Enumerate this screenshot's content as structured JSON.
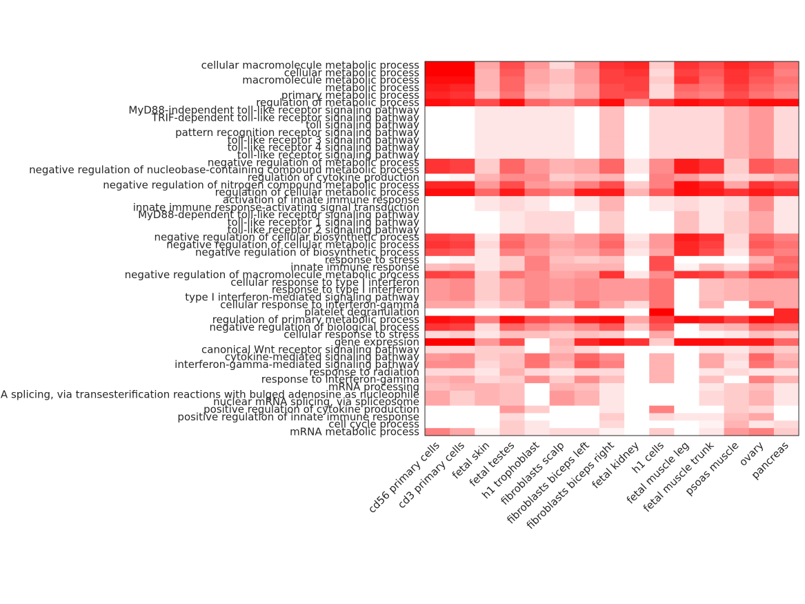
{
  "chart_data": {
    "type": "heatmap",
    "title": "",
    "xlabel": "",
    "ylabel": "",
    "color_low": "#ffffff",
    "color_high": "#ff0000",
    "value_range": [
      0,
      1
    ],
    "columns": [
      "cd56 primary cells",
      "cd3 primary cells",
      "fetal skin",
      "fetal testes",
      "h1 trophoblast",
      "fibroblasts scalp",
      "fibroblasts biceps left",
      "fibroblasts biceps right",
      "fetal kidney",
      "h1 cells",
      "fetal muscle leg",
      "fetal muscle trunk",
      "psoas muscle",
      "ovary",
      "pancreas"
    ],
    "rows": [
      "cellular macromolecule metabolic process",
      "cellular metabolic process",
      "macromolecule metabolic process",
      "metabolic process",
      "primary metabolic process",
      "regulation of metabolic process",
      "MyD88-independent toll-like receptor signaling pathway",
      "TRIF-dependent toll-like receptor signaling pathway",
      "toll signaling pathway",
      "pattern recognition receptor signaling pathway",
      "toll-like receptor 3 signaling pathway",
      "toll-like receptor 4 signaling pathway",
      "toll-like receptor signaling pathway",
      "negative regulation of metabolic process",
      "negative regulation of nucleobase-containing compound metabolic process",
      "regulation of cytokine production",
      "negative regulation of nitrogen compound metabolic process",
      "regulation of cellular metabolic process",
      "activation of innate immune response",
      "innate immune response-activating signal transduction",
      "MyD88-dependent toll-like receptor signaling pathway",
      "toll-like receptor 1 signaling pathway",
      "toll-like receptor 2 signaling pathway",
      "negative regulation of cellular biosynthetic process",
      "negative regulation of cellular metabolic process",
      "negative regulation of biosynthetic process",
      "response to stress",
      "innate immune response",
      "negative regulation of macromolecule metabolic process",
      "cellular response to type I interferon",
      "response to type I interferon",
      "type I interferon-mediated signaling pathway",
      "cellular response to interferon-gamma",
      "platelet degranulation",
      "regulation of primary metabolic process",
      "negative regulation of biological process",
      "cellular response to stress",
      "gene expression",
      "canonical Wnt receptor signaling pathway",
      "cytokine-mediated signaling pathway",
      "interferon-gamma-mediated signaling pathway",
      "response to radiation",
      "response to interferon-gamma",
      "mRNA processing",
      "mRNA splicing, via transesterification reactions with bulged adenosine as nucleophile",
      "nuclear mRNA splicing, via spliceosome",
      "positive regulation of cytokine production",
      "positive regulation of innate immune response",
      "cell cycle process",
      "mRNA metabolic process"
    ],
    "values": [
      [
        1.0,
        1.0,
        0.35,
        0.7,
        0.4,
        0.15,
        0.45,
        0.8,
        0.85,
        0.2,
        0.8,
        0.7,
        0.85,
        0.75,
        0.55
      ],
      [
        1.0,
        1.0,
        0.3,
        0.65,
        0.35,
        0.25,
        0.4,
        0.75,
        0.8,
        0.15,
        0.75,
        0.65,
        0.8,
        0.7,
        0.5
      ],
      [
        0.95,
        0.95,
        0.3,
        0.6,
        0.35,
        0.25,
        0.4,
        0.75,
        0.75,
        0.2,
        0.8,
        0.6,
        0.8,
        0.65,
        0.55
      ],
      [
        0.9,
        0.85,
        0.3,
        0.6,
        0.3,
        0.2,
        0.35,
        0.7,
        0.75,
        0.15,
        0.6,
        0.55,
        0.75,
        0.6,
        0.5
      ],
      [
        0.85,
        0.8,
        0.25,
        0.55,
        0.25,
        0.2,
        0.35,
        0.7,
        0.7,
        0.15,
        0.55,
        0.5,
        0.7,
        0.55,
        0.45
      ],
      [
        0.95,
        0.9,
        0.7,
        0.95,
        0.6,
        0.5,
        0.65,
        0.95,
        0.45,
        0.8,
        0.95,
        0.9,
        0.85,
        0.95,
        0.95
      ],
      [
        0.0,
        0.0,
        0.1,
        0.1,
        0.1,
        0.1,
        0.0,
        0.25,
        0.0,
        0.15,
        0.15,
        0.15,
        0.3,
        0.4,
        0.15
      ],
      [
        0.0,
        0.0,
        0.1,
        0.1,
        0.1,
        0.1,
        0.0,
        0.25,
        0.0,
        0.15,
        0.15,
        0.15,
        0.3,
        0.4,
        0.15
      ],
      [
        0.0,
        0.0,
        0.1,
        0.1,
        0.1,
        0.1,
        0.0,
        0.25,
        0.0,
        0.15,
        0.15,
        0.15,
        0.3,
        0.4,
        0.15
      ],
      [
        0.0,
        0.0,
        0.1,
        0.1,
        0.1,
        0.1,
        0.0,
        0.25,
        0.0,
        0.15,
        0.15,
        0.15,
        0.3,
        0.4,
        0.15
      ],
      [
        0.0,
        0.0,
        0.1,
        0.1,
        0.1,
        0.1,
        0.0,
        0.25,
        0.0,
        0.15,
        0.15,
        0.15,
        0.3,
        0.4,
        0.15
      ],
      [
        0.0,
        0.0,
        0.1,
        0.1,
        0.1,
        0.1,
        0.0,
        0.25,
        0.0,
        0.15,
        0.15,
        0.15,
        0.3,
        0.4,
        0.15
      ],
      [
        0.0,
        0.0,
        0.1,
        0.1,
        0.1,
        0.1,
        0.0,
        0.25,
        0.0,
        0.15,
        0.15,
        0.15,
        0.3,
        0.4,
        0.15
      ],
      [
        0.8,
        0.75,
        0.2,
        0.6,
        0.4,
        0.3,
        0.35,
        0.6,
        0.1,
        0.45,
        0.9,
        0.8,
        0.2,
        0.65,
        0.55
      ],
      [
        0.8,
        0.75,
        0.2,
        0.6,
        0.4,
        0.3,
        0.35,
        0.6,
        0.1,
        0.45,
        0.9,
        0.8,
        0.2,
        0.65,
        0.55
      ],
      [
        0.0,
        0.05,
        0.3,
        0.45,
        0.45,
        0.2,
        0.25,
        0.3,
        0.0,
        0.5,
        0.4,
        0.25,
        0.15,
        0.2,
        0.3
      ],
      [
        0.85,
        0.85,
        0.4,
        0.7,
        0.4,
        0.35,
        0.5,
        0.7,
        0.2,
        0.5,
        0.95,
        0.85,
        0.35,
        0.8,
        0.7
      ],
      [
        0.95,
        0.95,
        0.6,
        0.9,
        0.6,
        0.5,
        0.9,
        0.9,
        0.3,
        0.65,
        0.95,
        0.9,
        0.8,
        0.9,
        0.8
      ],
      [
        0.0,
        0.0,
        0.1,
        0.15,
        0.1,
        0.0,
        0.1,
        0.3,
        0.0,
        0.1,
        0.15,
        0.1,
        0.15,
        0.45,
        0.1
      ],
      [
        0.0,
        0.0,
        0.1,
        0.15,
        0.1,
        0.0,
        0.1,
        0.3,
        0.0,
        0.1,
        0.15,
        0.1,
        0.15,
        0.45,
        0.1
      ],
      [
        0.0,
        0.0,
        0.0,
        0.1,
        0.15,
        0.15,
        0.0,
        0.2,
        0.0,
        0.0,
        0.25,
        0.1,
        0.2,
        0.35,
        0.1
      ],
      [
        0.0,
        0.0,
        0.0,
        0.1,
        0.15,
        0.15,
        0.0,
        0.2,
        0.0,
        0.0,
        0.25,
        0.1,
        0.2,
        0.35,
        0.1
      ],
      [
        0.0,
        0.0,
        0.0,
        0.1,
        0.15,
        0.15,
        0.0,
        0.2,
        0.0,
        0.0,
        0.25,
        0.1,
        0.2,
        0.35,
        0.1
      ],
      [
        0.75,
        0.7,
        0.1,
        0.55,
        0.45,
        0.3,
        0.4,
        0.55,
        0.1,
        0.4,
        0.9,
        0.8,
        0.15,
        0.6,
        0.5
      ],
      [
        0.8,
        0.75,
        0.15,
        0.6,
        0.45,
        0.35,
        0.4,
        0.6,
        0.15,
        0.4,
        0.85,
        0.75,
        0.15,
        0.65,
        0.55
      ],
      [
        0.7,
        0.65,
        0.1,
        0.5,
        0.4,
        0.3,
        0.35,
        0.5,
        0.1,
        0.35,
        0.85,
        0.7,
        0.1,
        0.55,
        0.5
      ],
      [
        0.0,
        0.05,
        0.1,
        0.2,
        0.5,
        0.25,
        0.2,
        0.25,
        0.0,
        0.7,
        0.0,
        0.0,
        0.0,
        0.3,
        0.6
      ],
      [
        0.25,
        0.3,
        0.1,
        0.2,
        0.5,
        0.3,
        0.3,
        0.3,
        0.0,
        0.7,
        0.05,
        0.25,
        0.15,
        0.45,
        0.55
      ],
      [
        0.75,
        0.7,
        0.2,
        0.55,
        0.45,
        0.35,
        0.4,
        0.8,
        0.1,
        0.45,
        0.8,
        0.75,
        0.5,
        0.75,
        0.7
      ],
      [
        0.4,
        0.45,
        0.2,
        0.35,
        0.45,
        0.4,
        0.45,
        0.4,
        0.4,
        0.55,
        0.0,
        0.25,
        0.3,
        0.35,
        0.35
      ],
      [
        0.4,
        0.45,
        0.2,
        0.35,
        0.45,
        0.4,
        0.45,
        0.4,
        0.4,
        0.55,
        0.0,
        0.25,
        0.3,
        0.35,
        0.35
      ],
      [
        0.4,
        0.45,
        0.2,
        0.35,
        0.45,
        0.4,
        0.45,
        0.4,
        0.4,
        0.55,
        0.0,
        0.25,
        0.3,
        0.35,
        0.35
      ],
      [
        0.35,
        0.35,
        0.15,
        0.25,
        0.5,
        0.25,
        0.55,
        0.35,
        0.15,
        0.55,
        0.0,
        0.3,
        0.0,
        0.55,
        0.35
      ],
      [
        0.0,
        0.0,
        0.0,
        0.0,
        0.0,
        0.0,
        0.0,
        0.0,
        0.0,
        1.0,
        0.0,
        0.0,
        0.0,
        0.0,
        0.85
      ],
      [
        0.95,
        0.9,
        0.5,
        0.95,
        0.7,
        0.6,
        0.9,
        0.95,
        0.35,
        0.75,
        0.95,
        0.9,
        0.75,
        0.95,
        0.85
      ],
      [
        0.8,
        0.75,
        0.15,
        0.6,
        0.45,
        0.35,
        0.45,
        0.65,
        0.2,
        0.65,
        0.0,
        0.25,
        0.3,
        0.55,
        0.5
      ],
      [
        0.15,
        0.2,
        0.1,
        0.25,
        0.25,
        0.2,
        0.25,
        0.2,
        0.0,
        0.35,
        0.0,
        0.05,
        0.1,
        0.25,
        0.2
      ],
      [
        1.0,
        1.0,
        0.4,
        0.7,
        0.0,
        0.3,
        0.85,
        0.95,
        0.8,
        0.2,
        0.95,
        0.95,
        0.9,
        0.9,
        0.6
      ],
      [
        0.15,
        0.15,
        0.2,
        0.2,
        0.0,
        0.25,
        0.15,
        0.0,
        0.0,
        0.0,
        0.0,
        0.1,
        0.1,
        0.25,
        0.2
      ],
      [
        0.4,
        0.45,
        0.2,
        0.25,
        0.55,
        0.35,
        0.6,
        0.45,
        0.0,
        0.3,
        0.0,
        0.35,
        0.15,
        0.6,
        0.3
      ],
      [
        0.45,
        0.45,
        0.15,
        0.25,
        0.55,
        0.3,
        0.65,
        0.5,
        0.0,
        0.3,
        0.0,
        0.35,
        0.1,
        0.55,
        0.35
      ],
      [
        0.15,
        0.15,
        0.1,
        0.3,
        0.15,
        0.1,
        0.15,
        0.15,
        0.0,
        0.3,
        0.0,
        0.1,
        0.15,
        0.1,
        0.1
      ],
      [
        0.3,
        0.35,
        0.15,
        0.2,
        0.45,
        0.2,
        0.45,
        0.25,
        0.0,
        0.3,
        0.0,
        0.25,
        0.0,
        0.5,
        0.3
      ],
      [
        0.25,
        0.3,
        0.3,
        0.25,
        0.0,
        0.3,
        0.25,
        0.1,
        0.0,
        0.0,
        0.0,
        0.1,
        0.2,
        0.25,
        0.1
      ],
      [
        0.35,
        0.2,
        0.3,
        0.25,
        0.0,
        0.4,
        0.3,
        0.1,
        0.0,
        0.0,
        0.0,
        0.15,
        0.2,
        0.3,
        0.1
      ],
      [
        0.35,
        0.2,
        0.3,
        0.25,
        0.0,
        0.4,
        0.3,
        0.1,
        0.0,
        0.0,
        0.0,
        0.15,
        0.2,
        0.3,
        0.1
      ],
      [
        0.0,
        0.0,
        0.0,
        0.4,
        0.2,
        0.0,
        0.0,
        0.1,
        0.0,
        0.5,
        0.0,
        0.0,
        0.2,
        0.15,
        0.0
      ],
      [
        0.0,
        0.0,
        0.0,
        0.15,
        0.0,
        0.0,
        0.0,
        0.2,
        0.0,
        0.15,
        0.1,
        0.1,
        0.25,
        0.35,
        0.0
      ],
      [
        0.0,
        0.0,
        0.0,
        0.2,
        0.1,
        0.0,
        0.0,
        0.15,
        0.0,
        0.0,
        0.0,
        0.05,
        0.3,
        0.1,
        0.15
      ],
      [
        0.5,
        0.35,
        0.05,
        0.2,
        0.1,
        0.15,
        0.15,
        0.05,
        0.0,
        0.2,
        0.0,
        0.1,
        0.4,
        0.5,
        0.2
      ]
    ]
  }
}
